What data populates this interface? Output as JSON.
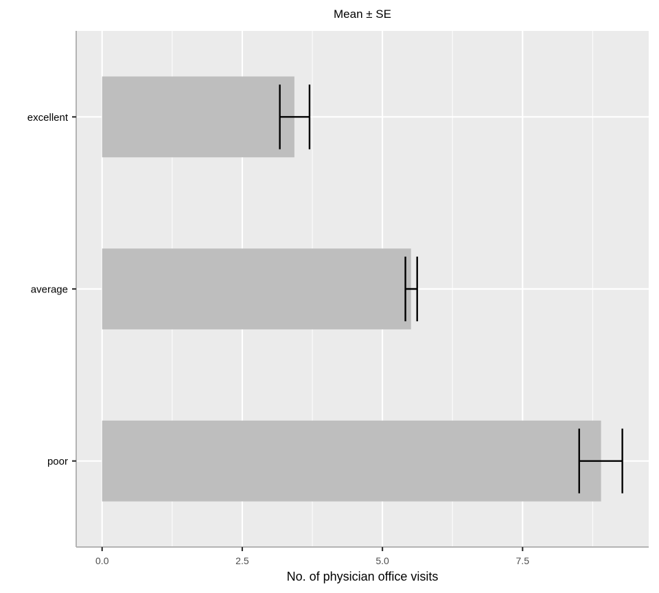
{
  "chart_data": {
    "type": "bar",
    "orientation": "horizontal",
    "title": "Mean ± SE",
    "xlabel": "No. of physician office visits",
    "ylabel": "",
    "categories": [
      "excellent",
      "average",
      "poor"
    ],
    "values": [
      3.43,
      5.51,
      8.9
    ],
    "error_low": [
      3.17,
      5.41,
      8.51
    ],
    "error_high": [
      3.7,
      5.62,
      9.28
    ],
    "xlim": [
      -0.45,
      9.75
    ],
    "xticks": [
      0,
      2.5,
      5,
      7.5
    ],
    "xtick_labels": [
      "0.0",
      "2.5",
      "5.0",
      "7.5"
    ],
    "grid": true,
    "colors": {
      "panel": "#ebebeb",
      "bar": "#bebebe",
      "grid_major": "#ffffff",
      "error_bar": "#000000",
      "axis_line": "#b3b3b3"
    }
  }
}
